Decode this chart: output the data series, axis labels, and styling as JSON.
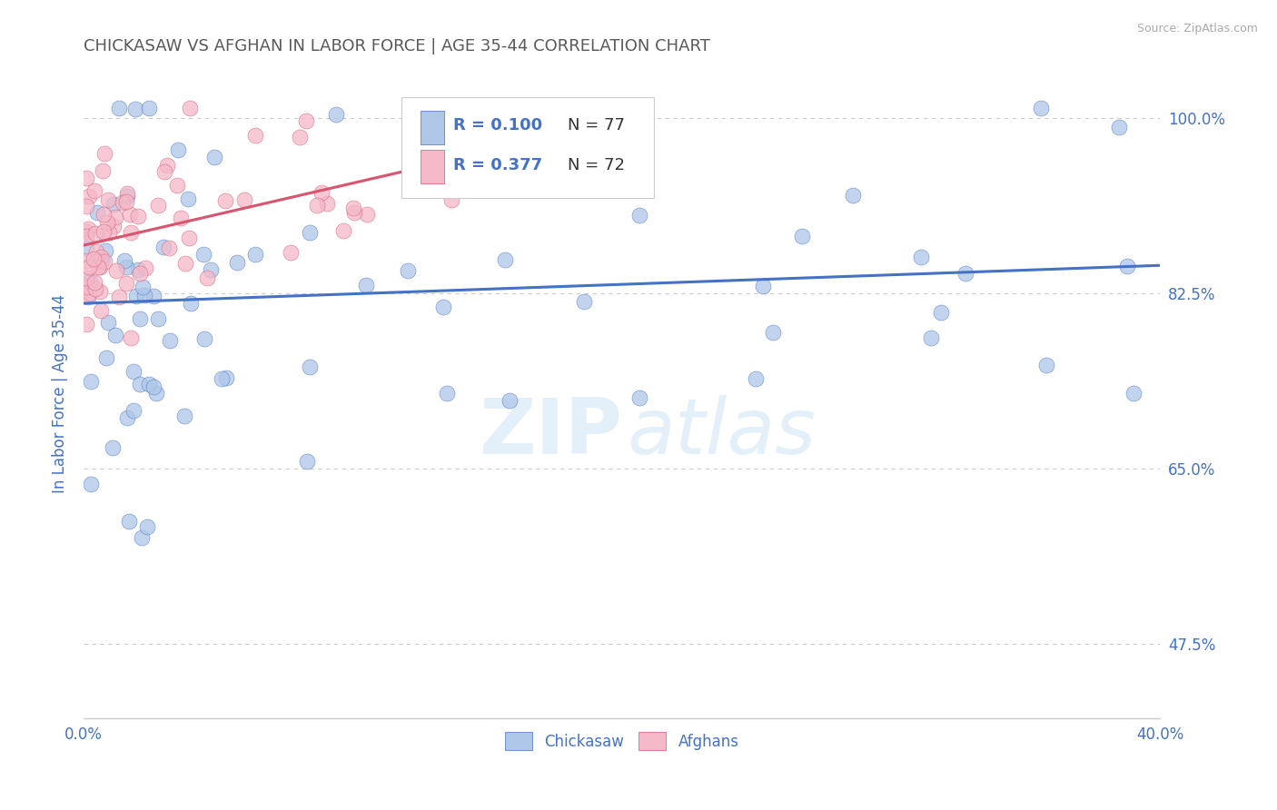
{
  "title": "CHICKASAW VS AFGHAN IN LABOR FORCE | AGE 35-44 CORRELATION CHART",
  "source_text": "Source: ZipAtlas.com",
  "ylabel": "In Labor Force | Age 35-44",
  "xlim": [
    0.0,
    0.4
  ],
  "ylim": [
    0.4,
    1.05
  ],
  "xticks": [
    0.0,
    0.1,
    0.2,
    0.3,
    0.4
  ],
  "xtick_labels": [
    "0.0%",
    "",
    "",
    "",
    "40.0%"
  ],
  "yticks": [
    0.475,
    0.65,
    0.825,
    1.0
  ],
  "ytick_labels": [
    "47.5%",
    "65.0%",
    "82.5%",
    "100.0%"
  ],
  "watermark_zip": "ZIP",
  "watermark_atlas": "atlas",
  "legend_r_chickasaw": "R = 0.100",
  "legend_n_chickasaw": "N = 77",
  "legend_r_afghan": "R = 0.377",
  "legend_n_afghan": "N = 72",
  "chickasaw_color": "#aec6e8",
  "afghan_color": "#f4b8c8",
  "trend_chickasaw_color": "#4472c4",
  "trend_afghan_color": "#d9546e",
  "title_color": "#595959",
  "axis_label_color": "#4472c4",
  "tick_color": "#4472c4",
  "background_color": "#ffffff",
  "grid_color": "#cccccc",
  "legend_label_chickasaw": "Chickasaw",
  "legend_label_afghan": "Afghans"
}
